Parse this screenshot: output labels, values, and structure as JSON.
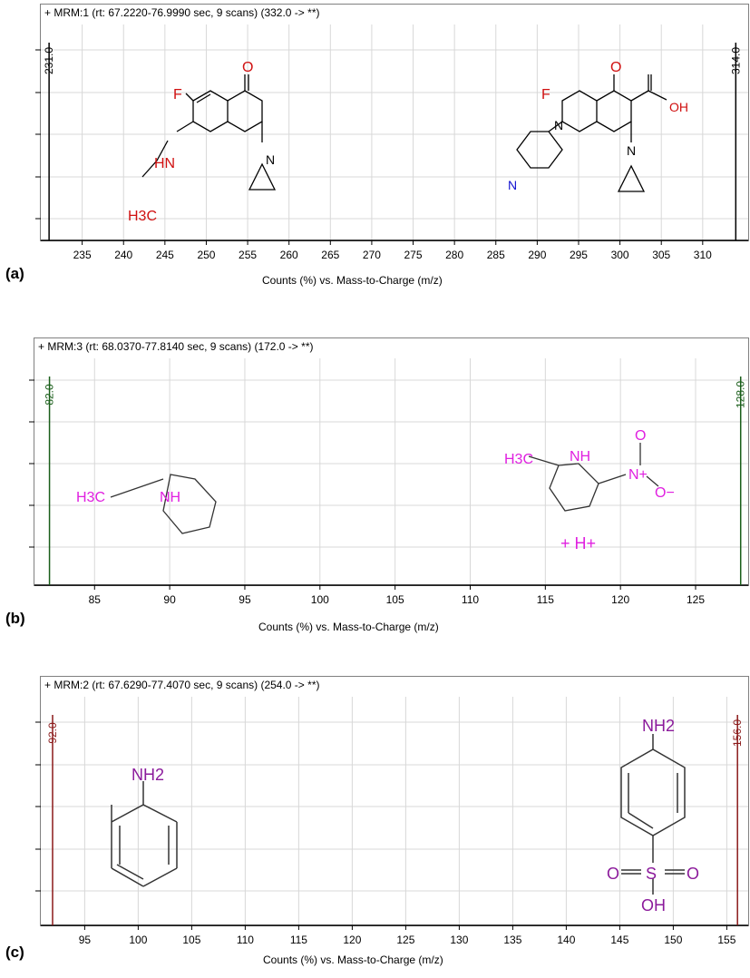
{
  "chart_data": [
    {
      "type": "bar",
      "panel_label": "(a)",
      "header": "+ MRM:1 (rt: 67.2220-76.9990 sec, 9 scans) (332.0 -> **)",
      "xlabel": "Counts (%) vs. Mass-to-Charge (m/z)",
      "xlim": [
        230,
        315.5
      ],
      "xticks": [
        235,
        240,
        245,
        250,
        255,
        260,
        265,
        270,
        275,
        280,
        285,
        290,
        295,
        300,
        305,
        310
      ],
      "grid": true,
      "peak_color": "#000000",
      "peaks": [
        {
          "x": 231.0,
          "label": "231.0"
        },
        {
          "x": 314.0,
          "label": "314.0"
        }
      ],
      "structure_text": [
        "O",
        "F",
        "HN",
        "H3C",
        "N",
        "O",
        "F",
        "OH",
        "N",
        "N",
        "N"
      ]
    },
    {
      "type": "bar",
      "panel_label": "(b)",
      "header": "+ MRM:3 (rt: 68.0370-77.8140 sec, 9 scans) (172.0 -> **)",
      "xlabel": "Counts (%) vs. Mass-to-Charge (m/z)",
      "xlim": [
        81,
        128.5
      ],
      "xticks": [
        85,
        90,
        95,
        100,
        105,
        110,
        115,
        120,
        125
      ],
      "grid": true,
      "peak_color": "#1a5e1a",
      "peaks": [
        {
          "x": 82.0,
          "label": "82.0"
        },
        {
          "x": 128.0,
          "label": "128.0"
        }
      ],
      "structure_text": [
        "H3C",
        "NH",
        "H3C",
        "NH",
        "N+",
        "O",
        "O−",
        "+ H+"
      ]
    },
    {
      "type": "bar",
      "panel_label": "(c)",
      "header": "+ MRM:2 (rt: 67.6290-77.4070 sec, 9 scans) (254.0 -> **)",
      "xlabel": "Counts (%) vs. Mass-to-Charge (m/z)",
      "xlim": [
        90.9,
        157.0
      ],
      "xticks": [
        95,
        100,
        105,
        110,
        115,
        120,
        125,
        130,
        135,
        140,
        145,
        150,
        155
      ],
      "grid": true,
      "peak_color": "#8b1a1a",
      "peaks": [
        {
          "x": 92.0,
          "label": "92.0"
        },
        {
          "x": 156.0,
          "label": "156.0"
        }
      ],
      "structure_text": [
        "NH2",
        "NH2",
        "O",
        "S",
        "O",
        "OH"
      ]
    }
  ]
}
